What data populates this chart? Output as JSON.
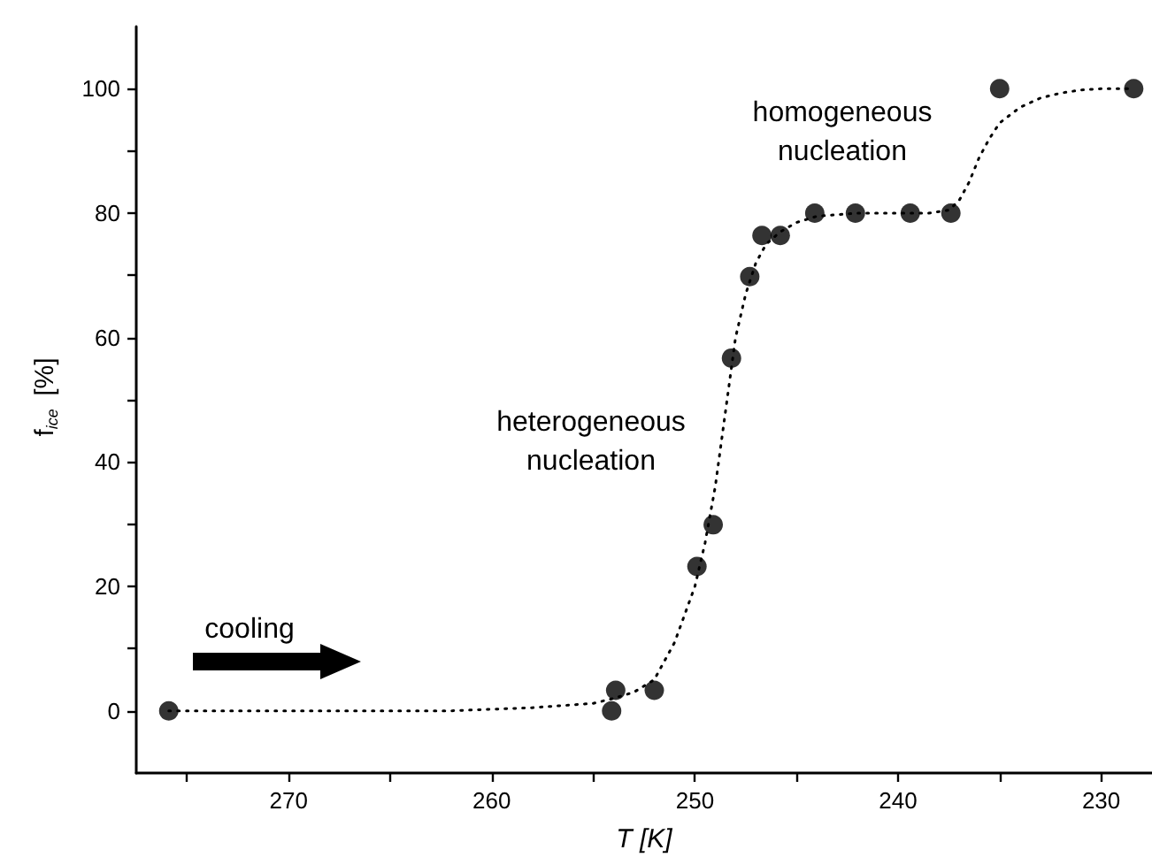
{
  "chart_data": {
    "type": "scatter",
    "xlabel": "T [K]",
    "ylabel": "f$_{ice}$ [%]",
    "xlim": [
      277.5,
      227.5
    ],
    "xticks": [
      {
        "value": 275,
        "label": null
      },
      270,
      {
        "value": 265,
        "label": null
      },
      260,
      {
        "value": 255,
        "label": null
      },
      250,
      {
        "value": 245,
        "label": null
      },
      240,
      {
        "value": 235,
        "label": null
      },
      230
    ],
    "ylim": [
      -10,
      110
    ],
    "yticks": [
      0,
      {
        "value": 10,
        "label": null
      },
      20,
      {
        "value": 30,
        "label": null
      },
      40,
      {
        "value": 50,
        "label": null
      },
      60,
      {
        "value": 70,
        "label": null
      },
      80,
      {
        "value": 90,
        "label": null
      },
      100
    ],
    "grid": false,
    "marker": "circle",
    "series": [
      {
        "type": "line",
        "color": "#000000",
        "marker": "none",
        "line_style": "dotted",
        "x": [
          275.9,
          262,
          258,
          255,
          254,
          253,
          252,
          251,
          250,
          249.5,
          249,
          248.5,
          248,
          247.5,
          247,
          246.5,
          245.8,
          245,
          244,
          242,
          240,
          238.5,
          237.5,
          237,
          236.5,
          236,
          235.5,
          235,
          234,
          233,
          232,
          231,
          230,
          228.4
        ],
        "values": [
          0,
          0,
          0.5,
          1.2,
          2,
          3,
          5,
          11,
          20,
          27,
          36,
          48,
          60,
          67,
          72,
          75,
          77,
          78.5,
          79.5,
          80,
          80,
          80,
          80.5,
          82,
          85,
          89,
          92,
          94.5,
          97,
          98.5,
          99.3,
          99.8,
          100,
          100
        ]
      },
      {
        "color": "#000000",
        "x": [
          275.9,
          254.1,
          253.9,
          252.0,
          249.9,
          249.1,
          248.2,
          247.3,
          246.7,
          245.8,
          244.1,
          242.1,
          239.4,
          237.4,
          235.0,
          228.4
        ],
        "values": [
          0,
          0,
          3.3,
          3.3,
          23.2,
          29.9,
          56.7,
          69.8,
          76.4,
          76.4,
          80,
          80,
          80,
          80,
          100,
          100
        ]
      }
    ],
    "annotations": [
      "cooling",
      "heterogeneous\nnucleation",
      "homogeneous\nnucleation"
    ]
  }
}
